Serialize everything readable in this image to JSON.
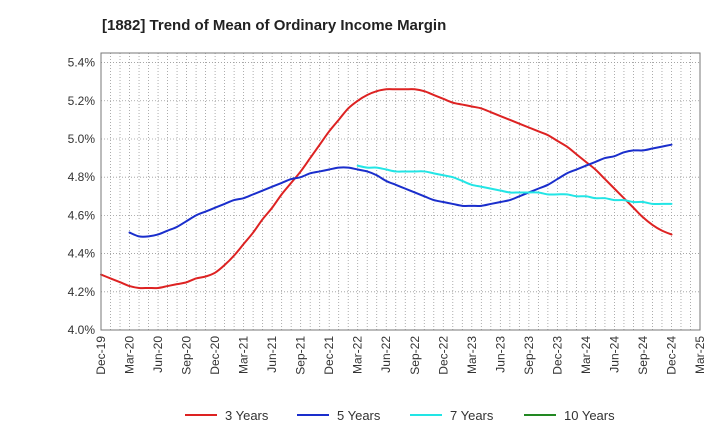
{
  "chart_data": {
    "type": "line",
    "title": "[1882]  Trend of Mean of Ordinary Income Margin",
    "xlabel": "",
    "ylabel": "",
    "x_tick_labels": [
      "Dec-19",
      "Mar-20",
      "Jun-20",
      "Sep-20",
      "Dec-20",
      "Mar-21",
      "Jun-21",
      "Sep-21",
      "Dec-21",
      "Mar-22",
      "Jun-22",
      "Sep-22",
      "Dec-22",
      "Mar-23",
      "Jun-23",
      "Sep-23",
      "Dec-23",
      "Mar-24",
      "Jun-24",
      "Sep-24",
      "Dec-24",
      "Mar-25"
    ],
    "y_tick_labels": [
      "4.0%",
      "4.2%",
      "4.4%",
      "4.6%",
      "4.8%",
      "5.0%",
      "5.2%",
      "5.4%"
    ],
    "ylim": [
      4.0,
      5.45
    ],
    "grid": true,
    "legend_position": "bottom",
    "series": [
      {
        "name": "3 Years",
        "color": "#dd2222",
        "x": [
          "Dec-19",
          "Jan-20",
          "Feb-20",
          "Mar-20",
          "Apr-20",
          "May-20",
          "Jun-20",
          "Jul-20",
          "Aug-20",
          "Sep-20",
          "Oct-20",
          "Nov-20",
          "Dec-20",
          "Jan-21",
          "Feb-21",
          "Mar-21",
          "Apr-21",
          "May-21",
          "Jun-21",
          "Jul-21",
          "Aug-21",
          "Sep-21",
          "Oct-21",
          "Nov-21",
          "Dec-21",
          "Jan-22",
          "Feb-22",
          "Mar-22",
          "Apr-22",
          "May-22",
          "Jun-22",
          "Jul-22",
          "Aug-22",
          "Sep-22",
          "Oct-22",
          "Nov-22",
          "Dec-22",
          "Jan-23",
          "Feb-23",
          "Mar-23",
          "Apr-23",
          "May-23",
          "Jun-23",
          "Jul-23",
          "Aug-23",
          "Sep-23",
          "Oct-23",
          "Nov-23",
          "Dec-23",
          "Jan-24",
          "Feb-24",
          "Mar-24",
          "Apr-24",
          "May-24",
          "Jun-24",
          "Jul-24",
          "Aug-24",
          "Sep-24",
          "Oct-24",
          "Nov-24",
          "Dec-24"
        ],
        "values": [
          4.29,
          4.27,
          4.25,
          4.23,
          4.22,
          4.22,
          4.22,
          4.23,
          4.24,
          4.25,
          4.27,
          4.28,
          4.3,
          4.34,
          4.39,
          4.45,
          4.51,
          4.58,
          4.64,
          4.71,
          4.77,
          4.83,
          4.9,
          4.97,
          5.04,
          5.1,
          5.16,
          5.2,
          5.23,
          5.25,
          5.26,
          5.26,
          5.26,
          5.26,
          5.25,
          5.23,
          5.21,
          5.19,
          5.18,
          5.17,
          5.16,
          5.14,
          5.12,
          5.1,
          5.08,
          5.06,
          5.04,
          5.02,
          4.99,
          4.96,
          4.92,
          4.88,
          4.84,
          4.79,
          4.74,
          4.69,
          4.64,
          4.59,
          4.55,
          4.52,
          4.5
        ]
      },
      {
        "name": "5 Years",
        "color": "#1a2ecc",
        "x": [
          "Dec-19",
          "Jan-20",
          "Feb-20",
          "Mar-20",
          "Apr-20",
          "May-20",
          "Jun-20",
          "Jul-20",
          "Aug-20",
          "Sep-20",
          "Oct-20",
          "Nov-20",
          "Dec-20",
          "Jan-21",
          "Feb-21",
          "Mar-21",
          "Apr-21",
          "May-21",
          "Jun-21",
          "Jul-21",
          "Aug-21",
          "Sep-21",
          "Oct-21",
          "Nov-21",
          "Dec-21",
          "Jan-22",
          "Feb-22",
          "Mar-22",
          "Apr-22",
          "May-22",
          "Jun-22",
          "Jul-22",
          "Aug-22",
          "Sep-22",
          "Oct-22",
          "Nov-22",
          "Dec-22",
          "Jan-23",
          "Feb-23",
          "Mar-23",
          "Apr-23",
          "May-23",
          "Jun-23",
          "Jul-23",
          "Aug-23",
          "Sep-23",
          "Oct-23",
          "Nov-23",
          "Dec-23",
          "Jan-24",
          "Feb-24",
          "Mar-24",
          "Apr-24",
          "May-24",
          "Jun-24",
          "Jul-24",
          "Aug-24",
          "Sep-24",
          "Oct-24",
          "Nov-24",
          "Dec-24"
        ],
        "values": [
          null,
          null,
          null,
          4.51,
          4.49,
          4.49,
          4.5,
          4.52,
          4.54,
          4.57,
          4.6,
          4.62,
          4.64,
          4.66,
          4.68,
          4.69,
          4.71,
          4.73,
          4.75,
          4.77,
          4.79,
          4.8,
          4.82,
          4.83,
          4.84,
          4.85,
          4.85,
          4.84,
          4.83,
          4.81,
          4.78,
          4.76,
          4.74,
          4.72,
          4.7,
          4.68,
          4.67,
          4.66,
          4.65,
          4.65,
          4.65,
          4.66,
          4.67,
          4.68,
          4.7,
          4.72,
          4.74,
          4.76,
          4.79,
          4.82,
          4.84,
          4.86,
          4.88,
          4.9,
          4.91,
          4.93,
          4.94,
          4.94,
          4.95,
          4.96,
          4.97
        ]
      },
      {
        "name": "7 Years",
        "color": "#22e5e5",
        "x": [
          "Mar-22",
          "Apr-22",
          "May-22",
          "Jun-22",
          "Jul-22",
          "Aug-22",
          "Sep-22",
          "Oct-22",
          "Nov-22",
          "Dec-22",
          "Jan-23",
          "Feb-23",
          "Mar-23",
          "Apr-23",
          "May-23",
          "Jun-23",
          "Jul-23",
          "Aug-23",
          "Sep-23",
          "Oct-23",
          "Nov-23",
          "Dec-23",
          "Jan-24",
          "Feb-24",
          "Mar-24",
          "Apr-24",
          "May-24",
          "Jun-24",
          "Jul-24",
          "Aug-24",
          "Sep-24",
          "Oct-24",
          "Nov-24",
          "Dec-24"
        ],
        "values": [
          4.86,
          4.85,
          4.85,
          4.84,
          4.83,
          4.83,
          4.83,
          4.83,
          4.82,
          4.81,
          4.8,
          4.78,
          4.76,
          4.75,
          4.74,
          4.73,
          4.72,
          4.72,
          4.72,
          4.72,
          4.71,
          4.71,
          4.71,
          4.7,
          4.7,
          4.69,
          4.69,
          4.68,
          4.68,
          4.67,
          4.67,
          4.66,
          4.66,
          4.66
        ]
      },
      {
        "name": "10 Years",
        "color": "#228822",
        "x": [],
        "values": []
      }
    ]
  }
}
